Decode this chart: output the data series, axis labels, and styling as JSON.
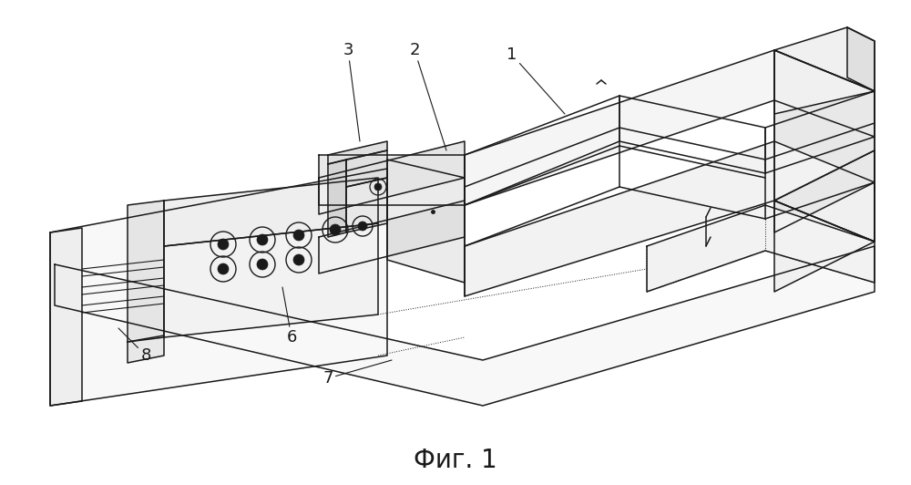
{
  "caption": "Фиг. 1",
  "caption_fontsize": 20,
  "bg": "#ffffff",
  "lc": "#1a1a1a",
  "lw": 1.1,
  "fig_w": 10.0,
  "fig_h": 5.32,
  "label_fs": 13
}
